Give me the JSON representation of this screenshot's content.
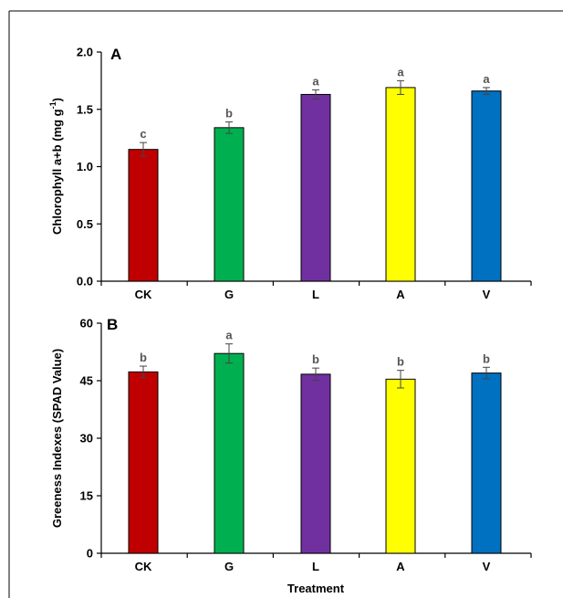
{
  "chart_data": [
    {
      "type": "bar",
      "panel_label": "A",
      "categories": [
        "CK",
        "G",
        "L",
        "A",
        "V"
      ],
      "values": [
        1.15,
        1.34,
        1.63,
        1.69,
        1.66
      ],
      "errors": [
        0.06,
        0.05,
        0.04,
        0.06,
        0.03
      ],
      "significance": [
        "c",
        "b",
        "a",
        "a",
        "a"
      ],
      "colors": [
        "#c00000",
        "#00b050",
        "#7030a0",
        "#ffff00",
        "#0070c0"
      ],
      "ylabel": "Chlorophyll a+b (mg g",
      "ylabel_sup": "-1",
      "ylabel_close": ")",
      "ylim": [
        0,
        2.0
      ],
      "yticks": [
        "0.0",
        "0.5",
        "1.0",
        "1.5",
        "2.0"
      ],
      "ytick_values": [
        0,
        0.5,
        1.0,
        1.5,
        2.0
      ],
      "xlabel": "",
      "grid": false
    },
    {
      "type": "bar",
      "panel_label": "B",
      "categories": [
        "CK",
        "G",
        "L",
        "A",
        "V"
      ],
      "values": [
        47.3,
        52.1,
        46.7,
        45.4,
        47.0
      ],
      "errors": [
        1.5,
        2.5,
        1.6,
        2.3,
        1.5
      ],
      "significance": [
        "b",
        "a",
        "b",
        "b",
        "b"
      ],
      "colors": [
        "#c00000",
        "#00b050",
        "#7030a0",
        "#ffff00",
        "#0070c0"
      ],
      "ylabel": "Greeness Indexes (SPAD Value)",
      "ylim": [
        0,
        60
      ],
      "yticks": [
        "0",
        "15",
        "30",
        "45",
        "60"
      ],
      "ytick_values": [
        0,
        15,
        30,
        45,
        60
      ],
      "xlabel": "Treatment",
      "grid": false
    }
  ]
}
